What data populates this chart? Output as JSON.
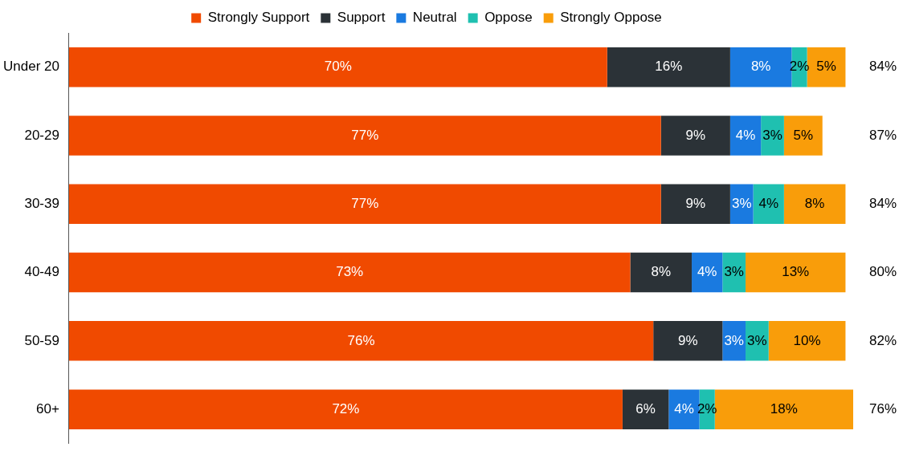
{
  "chart_data": {
    "type": "bar",
    "orientation": "horizontal",
    "stacked": true,
    "legend": "top",
    "grid": false,
    "tick_labels": "y",
    "categories": [
      "Under 20",
      "20-29",
      "30-39",
      "40-49",
      "50-59",
      "60+"
    ],
    "series": [
      {
        "name": "Strongly Support",
        "color": "#f04a00",
        "values": [
          70,
          77,
          77,
          73,
          76,
          72
        ],
        "value_labels": [
          "70%",
          "77%",
          "77%",
          "73%",
          "76%",
          "72%"
        ]
      },
      {
        "name": "Support",
        "color": "#2b3237",
        "values": [
          16,
          9,
          9,
          8,
          9,
          6
        ],
        "value_labels": [
          "16%",
          "9%",
          "9%",
          "8%",
          "9%",
          "6%"
        ]
      },
      {
        "name": "Neutral",
        "color": "#1a7ae0",
        "values": [
          8,
          4,
          3,
          4,
          3,
          4
        ],
        "value_labels": [
          "8%",
          "4%",
          "3%",
          "4%",
          "3%",
          "4%"
        ]
      },
      {
        "name": "Oppose",
        "color": "#1fc0b0",
        "values": [
          2,
          3,
          4,
          3,
          3,
          2
        ],
        "value_labels": [
          "2%",
          "3%",
          "4%",
          "3%",
          "3%",
          "2%"
        ]
      },
      {
        "name": "Strongly Oppose",
        "color": "#f99d0a",
        "values": [
          5,
          5,
          8,
          13,
          10,
          18
        ],
        "value_labels": [
          "5%",
          "5%",
          "8%",
          "13%",
          "10%",
          "18%"
        ]
      }
    ],
    "annotations": [
      "84%",
      "87%",
      "84%",
      "80%",
      "82%",
      "76%"
    ]
  }
}
